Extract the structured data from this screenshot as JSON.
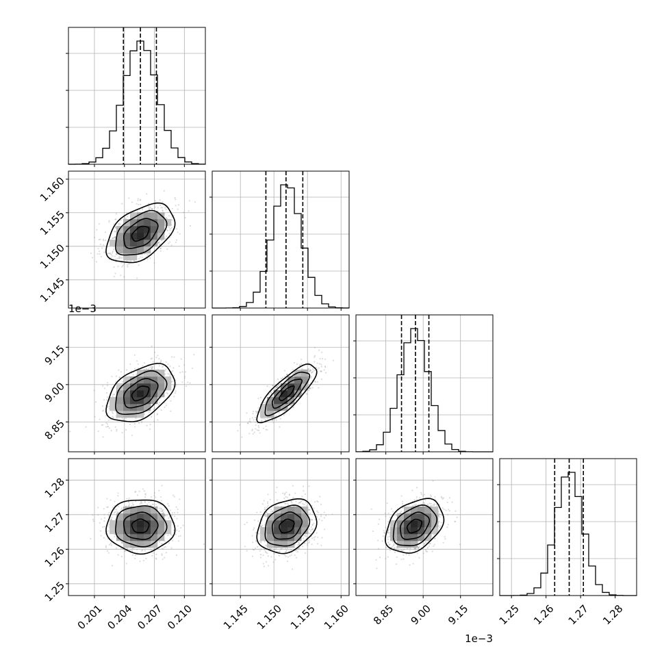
{
  "chart_data": {
    "type": "corner",
    "parameters": [
      {
        "range": [
          0.1984,
          0.2121
        ],
        "ticks": [
          0.201,
          0.204,
          0.207,
          0.21
        ],
        "tick_labels": [
          "0.201",
          "0.204",
          "0.207",
          "0.210"
        ],
        "offset_label": "",
        "mean": 0.2056,
        "sigma": 0.0017,
        "quantiles": [
          0.2039,
          0.2056,
          0.2072
        ],
        "hist_peak": 0.2056
      },
      {
        "range": [
          1.1408,
          1.1612
        ],
        "ticks": [
          1.145,
          1.15,
          1.155,
          1.16
        ],
        "tick_labels": [
          "1.145",
          "1.150",
          "1.155",
          "1.160"
        ],
        "offset_label": "",
        "mean": 1.1519,
        "sigma": 0.0022,
        "quantiles": [
          1.1488,
          1.1518,
          1.1543
        ],
        "hist_peak": 1.1519
      },
      {
        "range": [
          8.73,
          9.28
        ],
        "ticks": [
          8.85,
          9.0,
          9.15
        ],
        "tick_labels": [
          "8.85",
          "9.00",
          "9.15"
        ],
        "offset_label": "1e−3",
        "mean": 8.965,
        "sigma": 0.058,
        "quantiles": [
          8.913,
          8.969,
          9.023
        ],
        "hist_peak": 8.97
      },
      {
        "range": [
          1.2466,
          1.2862
        ],
        "ticks": [
          1.25,
          1.26,
          1.27,
          1.28
        ],
        "tick_labels": [
          "1.25",
          "1.26",
          "1.27",
          "1.28"
        ],
        "offset_label": "",
        "mean": 1.2667,
        "sigma": 0.0039,
        "quantiles": [
          1.2625,
          1.2667,
          1.2708
        ],
        "hist_peak": 1.2667
      }
    ],
    "correlations": {
      "1-0": 0.45,
      "2-0": 0.45,
      "2-1": 0.8,
      "3-0": 0.0,
      "3-1": 0.25,
      "3-2": 0.35
    },
    "grid": true,
    "colors": {
      "points": "#9a9a9a",
      "lines": "#000000",
      "grid": "#b0b0b0"
    }
  }
}
